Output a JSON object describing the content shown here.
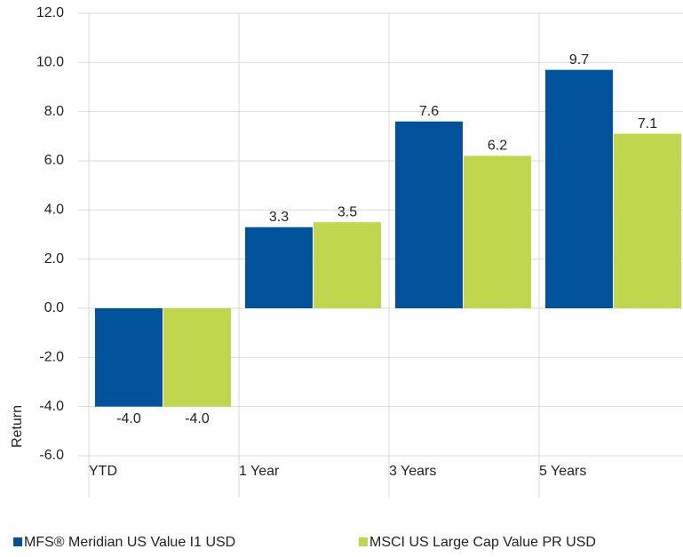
{
  "chart_data": {
    "type": "bar",
    "categories": [
      "YTD",
      "1 Year",
      "3 Years",
      "5 Years"
    ],
    "series": [
      {
        "name": "MFS® Meridian US Value I1 USD",
        "color": "#00529b",
        "values": [
          -4.0,
          3.3,
          7.6,
          9.7
        ],
        "value_labels": [
          "-4.0",
          "3.3",
          "7.6",
          "9.7"
        ]
      },
      {
        "name": "MSCI US Large Cap Value PR USD",
        "color": "#bfd64e",
        "values": [
          -4.0,
          3.5,
          6.2,
          7.1
        ],
        "value_labels": [
          "-4.0",
          "3.5",
          "6.2",
          "7.1"
        ]
      }
    ],
    "y_label": "Return",
    "ylim": [
      -6,
      12
    ],
    "yticks": [
      {
        "value": -6,
        "label": "-6.0"
      },
      {
        "value": -4,
        "label": "-4.0"
      },
      {
        "value": -2,
        "label": "-2.0"
      },
      {
        "value": 0,
        "label": "0.0"
      },
      {
        "value": 2,
        "label": "2.0"
      },
      {
        "value": 4,
        "label": "4.0"
      },
      {
        "value": 6,
        "label": "6.0"
      },
      {
        "value": 8,
        "label": "8.0"
      },
      {
        "value": 10,
        "label": "10.0"
      },
      {
        "value": 12,
        "label": "12.0"
      }
    ],
    "grid": true,
    "legend": "bottom"
  }
}
